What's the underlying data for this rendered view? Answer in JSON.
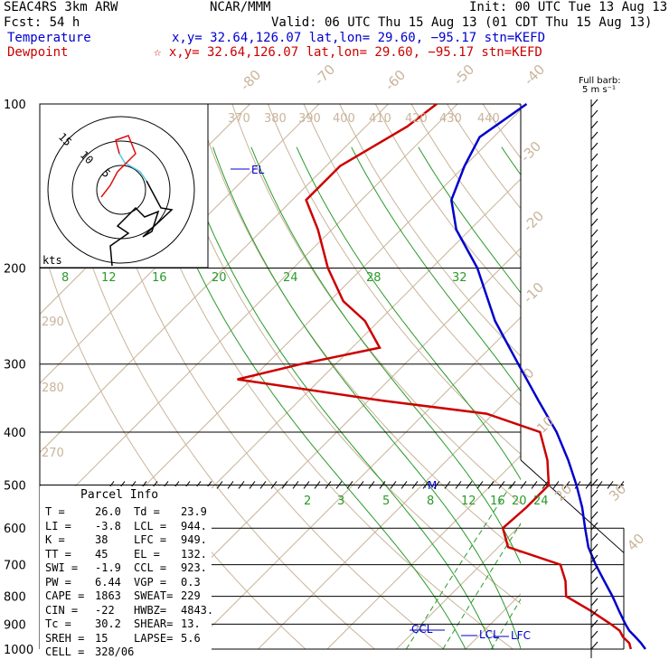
{
  "header": {
    "model": "SEAC4RS  3km ARW",
    "org": "NCAR/MMM",
    "init": "Init: 00 UTC Tue 13 Aug 13",
    "fcst": "Fcst:   54 h",
    "valid": "Valid: 06 UTC Thu 15 Aug 13 (01 CDT Thu 15 Aug 13)",
    "temp_label": "Temperature",
    "temp_loc": "x,y= 32.64,126.07   lat,lon= 29.60, −95.17  stn=KEFD",
    "dew_label": "Dewpoint",
    "dew_loc": "☆ x,y= 32.64,126.07   lat,lon= 29.60, −95.17  stn=KEFD",
    "barb_label1": "Full barb:",
    "barb_label2": "5 m s⁻¹",
    "colors": {
      "temperature": "#0000cc",
      "dewpoint": "#cc0000",
      "isotherm": "#c9b49a",
      "mixing_ratio": "#2a9a2a"
    }
  },
  "parcel_info": {
    "title": "Parcel Info",
    "rows": [
      [
        "T  =",
        "26.0",
        "Td =",
        "23.9"
      ],
      [
        "LI =",
        "-3.8",
        "LCL =",
        "944."
      ],
      [
        "K  =",
        "38",
        "LFC =",
        "949."
      ],
      [
        "TT =",
        "45",
        "EL =",
        "132."
      ],
      [
        "SWI =",
        "-1.9",
        "CCL =",
        "923."
      ],
      [
        "PW =",
        "6.44",
        "VGP =",
        "0.3"
      ],
      [
        "CAPE =",
        "1863",
        "SWEAT=",
        "229"
      ],
      [
        "CIN =",
        "-22",
        "HWBZ=",
        "4843."
      ],
      [
        "Tc =",
        "30.2",
        "SHEAR=",
        "13."
      ],
      [
        "SREH =",
        "15",
        "LAPSE=",
        "5.6"
      ],
      [
        "CELL =",
        "328/06",
        "",
        ""
      ]
    ]
  },
  "chart_data": {
    "type": "line",
    "title": "",
    "ylabel": "",
    "pressure_ticks": [
      100,
      200,
      300,
      400,
      500,
      600,
      700,
      800,
      900,
      1000
    ],
    "isotherm_labels": [
      "-80",
      "-70",
      "-60",
      "-50",
      "-40",
      "-30",
      "-20",
      "-10",
      "0",
      "10",
      "20",
      "30",
      "40"
    ],
    "theta_labels": [
      "370",
      "380",
      "390",
      "400",
      "410",
      "420",
      "430",
      "440",
      "290",
      "280",
      "270"
    ],
    "mixing_ratio_labels_upper": [
      "8",
      "12",
      "16",
      "20",
      "24",
      "28",
      "32"
    ],
    "mixing_ratio_labels_lower": [
      "2",
      "3",
      "5",
      "8",
      "12",
      "16",
      "20",
      "24"
    ],
    "series": [
      {
        "name": "Temperature",
        "pressure": [
          1000,
          975,
          950,
          925,
          900,
          850,
          800,
          750,
          700,
          650,
          600,
          550,
          500,
          450,
          400,
          350,
          300,
          250,
          200,
          170,
          150,
          130,
          115,
          100
        ],
        "value": [
          26.0,
          24.5,
          22.8,
          21.0,
          19.5,
          16.6,
          13.6,
          10.2,
          6.6,
          3.0,
          -0.2,
          -3.6,
          -7.7,
          -12.5,
          -18.2,
          -25.4,
          -33.6,
          -43.2,
          -53.4,
          -62,
          -67,
          -70,
          -72,
          -70
        ]
      },
      {
        "name": "Dewpoint",
        "pressure": [
          1000,
          975,
          950,
          925,
          900,
          850,
          800,
          750,
          700,
          650,
          600,
          550,
          500,
          450,
          400,
          370,
          350,
          320,
          300,
          280,
          250,
          230,
          200,
          170,
          150,
          130,
          110,
          100
        ],
        "value": [
          23.9,
          22.8,
          21.0,
          19.6,
          17.4,
          12.5,
          6.9,
          4.6,
          1.5,
          -8.6,
          -12.1,
          -11.7,
          -11.7,
          -15.5,
          -20.6,
          -31,
          -48,
          -72,
          -65,
          -56,
          -62,
          -68,
          -75,
          -82,
          -88,
          -88,
          -84,
          -83
        ]
      }
    ],
    "markers": [
      "EL",
      "M",
      "CCL",
      "LCL",
      "LFC"
    ],
    "hodograph": {
      "units": "kts",
      "rings": [
        "5",
        "10",
        "15"
      ]
    },
    "grid": true,
    "legend": "top-left"
  }
}
